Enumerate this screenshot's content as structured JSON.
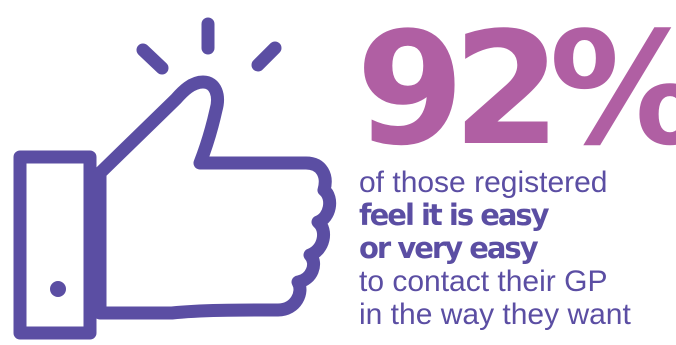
{
  "stat": {
    "value": "92%"
  },
  "copy": {
    "line1": "of those registered",
    "line2": "feel it is easy",
    "line3": "or very easy",
    "line4": "to contact their GP",
    "line5": "in the way they want"
  },
  "icon": {
    "name": "thumbs-up-icon",
    "color": "#5b4ea3"
  },
  "colors": {
    "stat": "#b05fa3",
    "text": "#5b4ea3"
  }
}
